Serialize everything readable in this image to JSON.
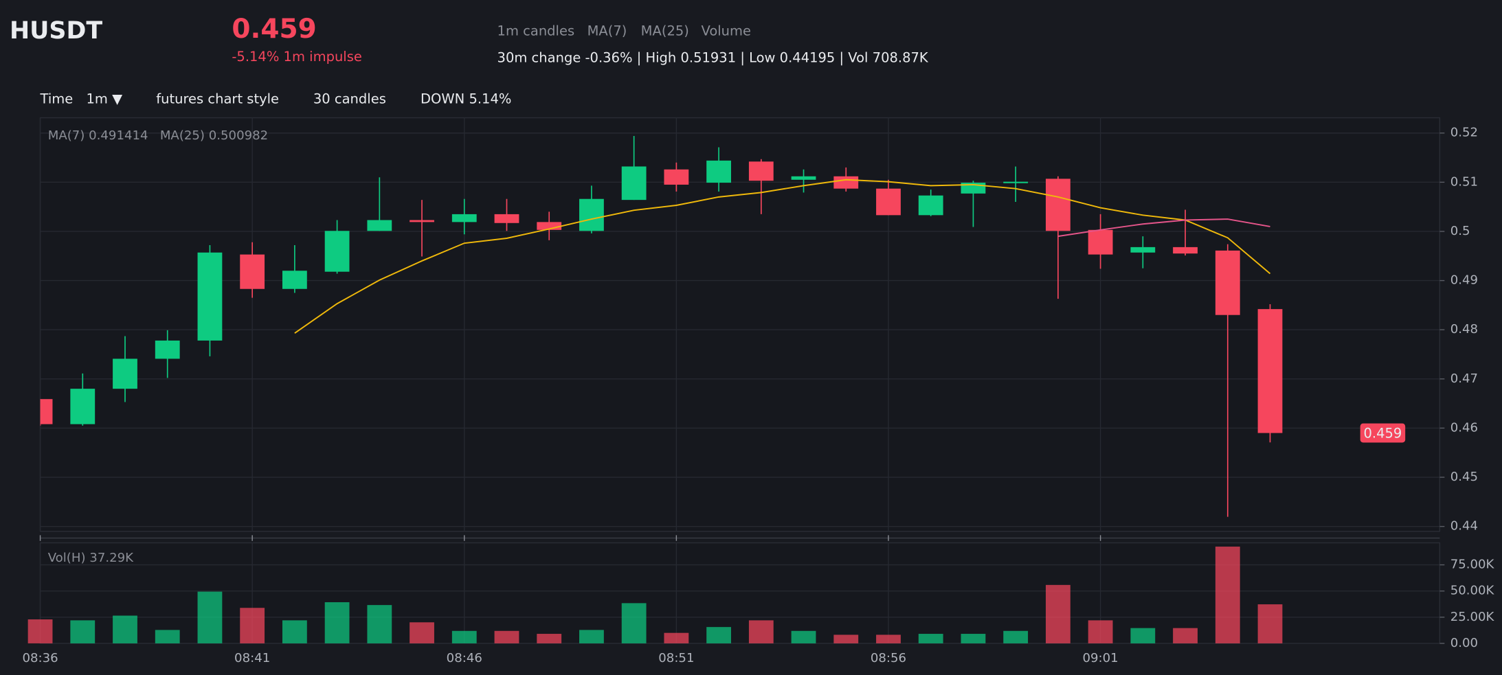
{
  "header": {
    "symbol": "HUSDT",
    "price": "0.459",
    "impulse": "-5.14% 1m impulse",
    "toggles": [
      "1m candles",
      "MA(7)",
      "MA(25)",
      "Volume"
    ],
    "stats": "30m change -0.36% | High 0.51931 | Low 0.44195 | Vol 708.87K"
  },
  "toolbar": {
    "time_label": "Time",
    "interval": "1m ▼",
    "style": "futures chart style",
    "count": "30 candles",
    "direction": "DOWN 5.14%"
  },
  "chart_data": {
    "type": "candlestick",
    "categories": [
      "08:36",
      null,
      null,
      null,
      null,
      "08:41",
      null,
      null,
      null,
      null,
      "08:46",
      null,
      null,
      null,
      null,
      "08:51",
      null,
      null,
      null,
      null,
      "08:56",
      null,
      null,
      null,
      null,
      "09:01",
      null,
      null,
      null,
      null
    ],
    "open": [
      0.4659,
      0.4608,
      0.468,
      0.4741,
      0.4778,
      0.4953,
      0.4883,
      0.4918,
      0.5001,
      0.5023,
      0.5019,
      0.5035,
      0.5019,
      0.5001,
      0.5064,
      0.5126,
      0.5099,
      0.5142,
      0.5105,
      0.5112,
      0.5087,
      0.5033,
      0.5077,
      0.5099,
      0.5107,
      0.5003,
      0.4957,
      0.4968,
      0.4961,
      0.4842
    ],
    "high": [
      0.4659,
      0.4711,
      0.4787,
      0.4799,
      0.4972,
      0.4978,
      0.4972,
      0.5023,
      0.511,
      0.5064,
      0.5066,
      0.5066,
      0.504,
      0.5093,
      0.5194,
      0.514,
      0.5171,
      0.5147,
      0.5126,
      0.513,
      0.5105,
      0.5085,
      0.5103,
      0.5132,
      0.5112,
      0.5035,
      0.499,
      0.5044,
      0.4974,
      0.4852
    ],
    "low": [
      0.4605,
      0.4605,
      0.4653,
      0.4702,
      0.4746,
      0.4865,
      0.4875,
      0.4914,
      0.5001,
      0.4949,
      0.4994,
      0.5001,
      0.4982,
      0.4996,
      0.5064,
      0.5081,
      0.5081,
      0.5035,
      0.5079,
      0.5081,
      0.5033,
      0.5031,
      0.5009,
      0.506,
      0.4863,
      0.4924,
      0.4925,
      0.4951,
      0.44195,
      0.4571
    ],
    "close": [
      0.4608,
      0.468,
      0.4741,
      0.4778,
      0.4957,
      0.4883,
      0.492,
      0.5001,
      0.5023,
      0.5019,
      0.5035,
      0.5017,
      0.5003,
      0.5066,
      0.5132,
      0.5095,
      0.5144,
      0.5103,
      0.5112,
      0.5087,
      0.5033,
      0.5073,
      0.5099,
      0.5101,
      0.5001,
      0.4953,
      0.4968,
      0.4955,
      0.483,
      0.459
    ],
    "up_color": "#0ecb81",
    "down_color": "#f6465d",
    "ylim": [
      0.439,
      0.5231
    ],
    "yticks": [
      0.44,
      0.45,
      0.46,
      0.47,
      0.48,
      0.49,
      0.5,
      0.51,
      0.52
    ],
    "grid": true,
    "overlays": [
      {
        "name": "MA(7)",
        "color": "#f0b90b",
        "values": [
          null,
          null,
          null,
          null,
          null,
          null,
          0.4793,
          0.4853,
          0.4901,
          0.494,
          0.4976,
          0.4986,
          0.5005,
          0.5025,
          0.5043,
          0.5053,
          0.507,
          0.5079,
          0.5093,
          0.5105,
          0.5101,
          0.5093,
          0.5095,
          0.5087,
          0.507,
          0.5048,
          0.5033,
          0.5023,
          0.4987,
          0.491414
        ]
      },
      {
        "name": "MA(25)",
        "color": "#e6558a",
        "values": [
          null,
          null,
          null,
          null,
          null,
          null,
          null,
          null,
          null,
          null,
          null,
          null,
          null,
          null,
          null,
          null,
          null,
          null,
          null,
          null,
          null,
          null,
          null,
          null,
          0.499,
          0.5003,
          0.5015,
          0.5023,
          0.5025,
          0.500982
        ]
      }
    ],
    "legend_labels": [
      "MA(7) 0.491414",
      "MA(25) 0.500982"
    ],
    "volume": {
      "label": "Vol(H) 37.29K",
      "values": [
        22.9,
        22.0,
        26.5,
        12.8,
        49.4,
        33.9,
        22.0,
        39.3,
        36.6,
        20.1,
        11.9,
        11.9,
        9.1,
        12.8,
        38.4,
        10.0,
        15.6,
        22.0,
        11.9,
        8.2,
        8.2,
        9.1,
        9.1,
        11.9,
        55.8,
        22.0,
        14.6,
        14.6,
        92.4,
        37.29
      ],
      "ylim": [
        0,
        96
      ],
      "yticks": [
        {
          "value": 0,
          "label": "0.00"
        },
        {
          "value": 25,
          "label": "25.00K"
        },
        {
          "value": 50,
          "label": "50.00K"
        },
        {
          "value": 75,
          "label": "75.00K"
        }
      ]
    }
  }
}
